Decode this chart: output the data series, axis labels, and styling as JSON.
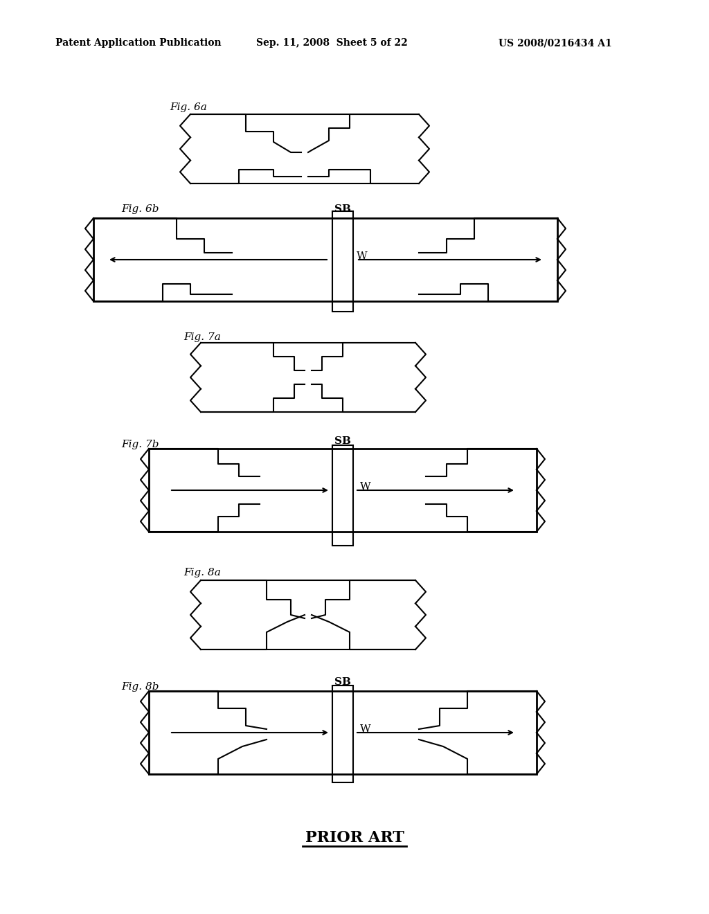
{
  "title_line1": "Patent Application Publication",
  "title_line2": "Sep. 11, 2008  Sheet 5 of 22",
  "title_line3": "US 2008/0216434 A1",
  "prior_art": "PRIOR ART",
  "fig_labels": [
    "Fig. 6a",
    "Fig. 6b",
    "Fig. 7a",
    "Fig. 7b",
    "Fig. 8a",
    "Fig. 8b"
  ],
  "bg_color": "#ffffff",
  "line_color": "#000000"
}
